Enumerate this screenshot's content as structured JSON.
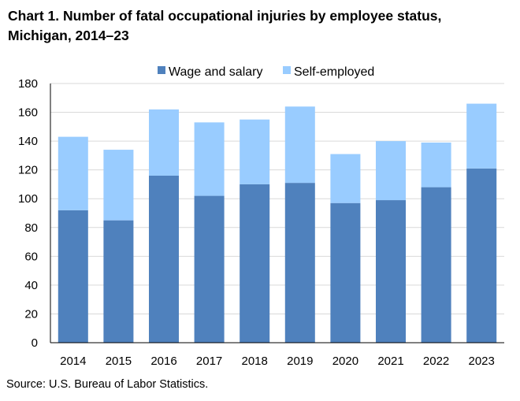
{
  "title_line1": "Chart 1. Number of fatal occupational injuries by employee status,",
  "title_line2": "Michigan, 2014–23",
  "source": "Source: U.S. Bureau of Labor Statistics.",
  "colors": {
    "wage_and_salary": "#4f81bd",
    "self_employed": "#99ccff",
    "grid": "#d9d9d9",
    "axis": "#000000"
  },
  "chart_data": {
    "type": "bar",
    "stacked": true,
    "categories": [
      "2014",
      "2015",
      "2016",
      "2017",
      "2018",
      "2019",
      "2020",
      "2021",
      "2022",
      "2023"
    ],
    "series": [
      {
        "name": "Wage and salary",
        "values": [
          92,
          85,
          116,
          102,
          110,
          111,
          97,
          99,
          108,
          121
        ]
      },
      {
        "name": "Self-employed",
        "values": [
          51,
          49,
          46,
          51,
          45,
          53,
          34,
          41,
          31,
          45
        ]
      }
    ],
    "ylim": [
      0,
      180
    ],
    "yticks": [
      0,
      20,
      40,
      60,
      80,
      100,
      120,
      140,
      160,
      180
    ],
    "grid": true,
    "legend": "top-center"
  }
}
